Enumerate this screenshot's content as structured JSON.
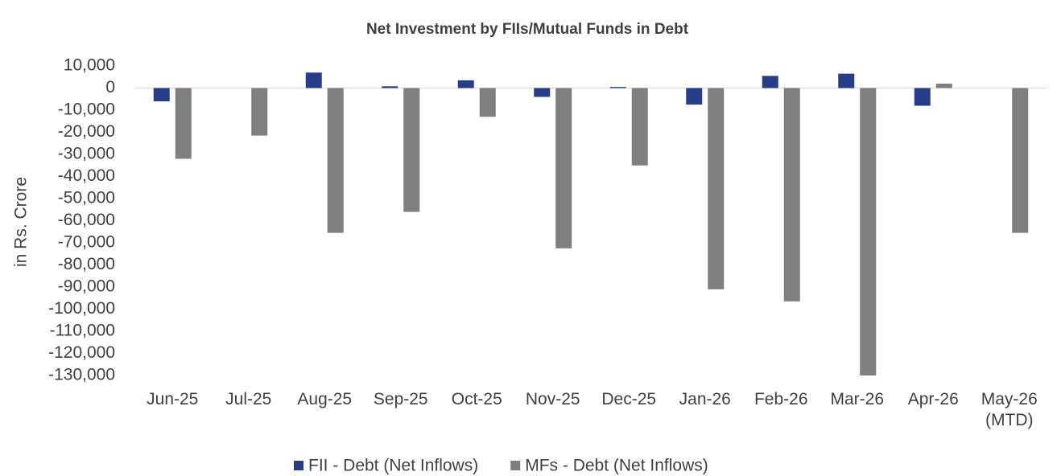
{
  "chart_data": {
    "type": "bar",
    "title": "Net Investment by FIIs/Mutual Funds in Debt",
    "y_label": "in Rs. Crore",
    "categories": [
      "Jun-25",
      "Jul-25",
      "Aug-25",
      "Sep-25",
      "Oct-25",
      "Nov-25",
      "Dec-25",
      "Jan-26",
      "Feb-26",
      "Mar-26",
      "Apr-26",
      "May-26 (MTD)"
    ],
    "series": [
      {
        "name": "FII - Debt (Net Inflows)",
        "color": "#263d8a",
        "values": [
          -6000,
          0,
          7000,
          800,
          3500,
          -4000,
          500,
          -7500,
          5500,
          6500,
          -8000,
          0
        ]
      },
      {
        "name": "MFs - Debt (Net Inflows)",
        "color": "#7f7f7f",
        "values": [
          -32000,
          -21500,
          -65500,
          -56000,
          -13000,
          -72500,
          -35000,
          -91000,
          -96500,
          -130000,
          2000,
          -65500
        ]
      }
    ],
    "ylim": [
      -130000,
      10000
    ],
    "yticks": [
      {
        "value": 10000,
        "label": "10,000"
      },
      0,
      {
        "value": -10000,
        "label": "-10,000"
      },
      {
        "value": -20000,
        "label": "-20,000"
      },
      {
        "value": -30000,
        "label": "-30,000"
      },
      {
        "value": -40000,
        "label": "-40,000"
      },
      {
        "value": -50000,
        "label": "-50,000"
      },
      {
        "value": -60000,
        "label": "-60,000"
      },
      {
        "value": -70000,
        "label": "-70,000"
      },
      {
        "value": -80000,
        "label": "-80,000"
      },
      {
        "value": -90000,
        "label": "-90,000"
      },
      {
        "value": -100000,
        "label": "-100,000"
      },
      {
        "value": -110000,
        "label": "-110,000"
      },
      {
        "value": -120000,
        "label": "-120,000"
      },
      {
        "value": -130000,
        "label": "-130,000"
      }
    ],
    "grid": false,
    "legend": "bottom"
  }
}
